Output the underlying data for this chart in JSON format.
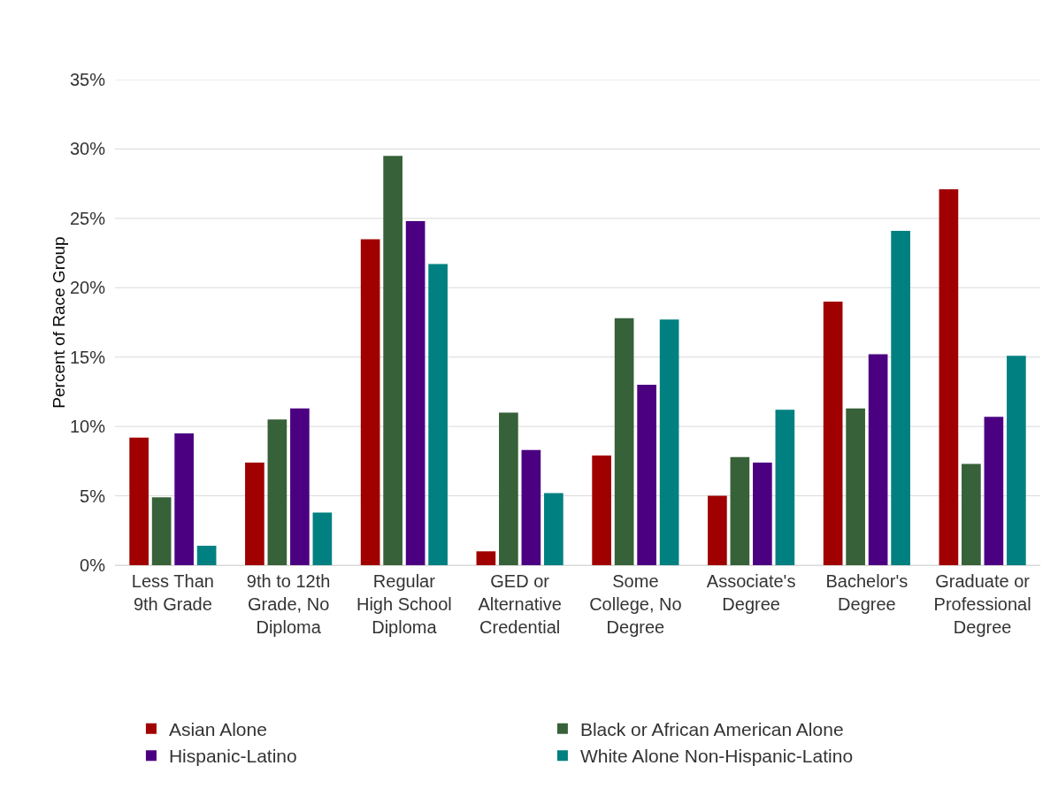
{
  "chart_data": {
    "type": "bar",
    "ylabel": "Percent of Race Group",
    "categories": [
      "Less Than 9th Grade",
      "9th to 12th Grade, No Diploma",
      "Regular High School Diploma",
      "GED or Alternative Credential",
      "Some College, No Degree",
      "Associate's Degree",
      "Bachelor's Degree",
      "Graduate or Professional Degree"
    ],
    "series": [
      {
        "name": "Asian Alone",
        "color": "#a00000",
        "values": [
          9.2,
          7.4,
          23.5,
          1.0,
          7.9,
          5.0,
          19.0,
          27.1
        ]
      },
      {
        "name": "Black or African American Alone",
        "color": "#376138",
        "values": [
          4.9,
          10.5,
          29.5,
          11.0,
          17.8,
          7.8,
          11.3,
          7.3
        ]
      },
      {
        "name": "Hispanic-Latino",
        "color": "#4b0082",
        "values": [
          9.5,
          11.3,
          24.8,
          8.3,
          13.0,
          7.4,
          15.2,
          10.7
        ]
      },
      {
        "name": "White Alone Non-Hispanic-Latino",
        "color": "#008080",
        "values": [
          1.4,
          3.8,
          21.7,
          5.2,
          17.7,
          11.2,
          24.1,
          15.1
        ]
      }
    ],
    "ylim": [
      0,
      35
    ],
    "yticks": [
      {
        "value": 0,
        "label": "0%"
      },
      {
        "value": 5,
        "label": "5%"
      },
      {
        "value": 10,
        "label": "10%"
      },
      {
        "value": 15,
        "label": "15%"
      },
      {
        "value": 20,
        "label": "20%"
      },
      {
        "value": 25,
        "label": "25%"
      },
      {
        "value": 30,
        "label": "30%"
      },
      {
        "value": 35,
        "label": "35%"
      }
    ],
    "grid": "y",
    "legend": "bottom"
  }
}
